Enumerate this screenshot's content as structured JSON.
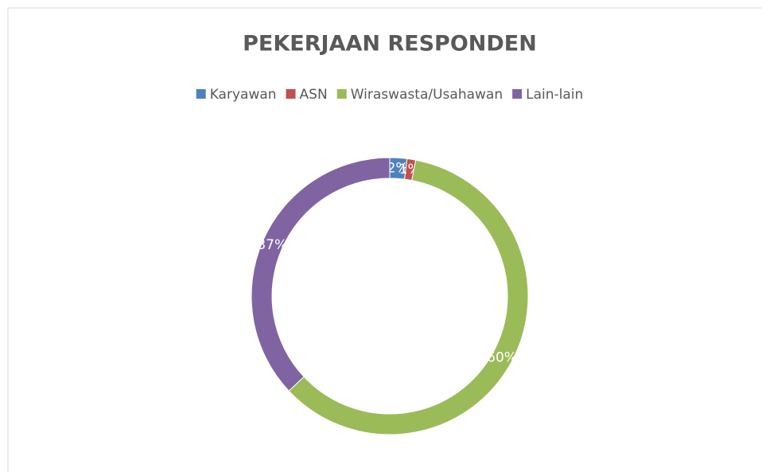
{
  "chart_data": {
    "type": "pie",
    "title": "PEKERJAAN RESPONDEN",
    "categories": [
      "Karyawan",
      "ASN",
      "Wiraswasta/Usahawan",
      "Lain-lain"
    ],
    "values": [
      2,
      1,
      60,
      37
    ],
    "value_labels": [
      "2%",
      "1%",
      "60%",
      "37%"
    ],
    "colors": [
      "#4f81bd",
      "#c0504d",
      "#9bbb59",
      "#8064a2"
    ],
    "legend": "top"
  }
}
